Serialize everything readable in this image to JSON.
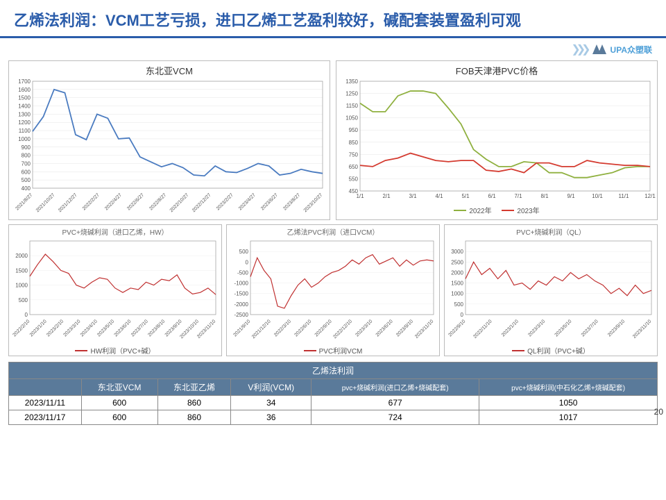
{
  "title": "乙烯法利润：VCM工艺亏损，进口乙烯工艺盈利较好，碱配套装置盈利可观",
  "logo_text": "UPA众塑联",
  "page_number": "20",
  "chart1": {
    "title": "东北亚VCM",
    "color": "#4a7bc0",
    "ylim": [
      400,
      1700
    ],
    "ytick_step": 100,
    "grid_color": "#e5e5e5",
    "x_labels": [
      "2021/8/27",
      "2021/10/27",
      "2021/12/27",
      "2022/2/27",
      "2022/4/27",
      "2022/6/27",
      "2022/8/27",
      "2022/10/27",
      "2022/12/27",
      "2023/2/27",
      "2023/4/27",
      "2023/6/27",
      "2023/8/27",
      "2023/10/27"
    ],
    "series": [
      1090,
      1270,
      1600,
      1560,
      1050,
      990,
      1300,
      1250,
      1000,
      1010,
      780,
      720,
      660,
      700,
      650,
      560,
      550,
      670,
      600,
      590,
      640,
      700,
      670,
      560,
      580,
      630,
      600,
      580
    ]
  },
  "chart2": {
    "title": "FOB天津港PVC价格",
    "ylim": [
      450,
      1350
    ],
    "ytick_step": 100,
    "grid_color": "#e5e5e5",
    "x_labels": [
      "1/1",
      "2/1",
      "3/1",
      "4/1",
      "5/1",
      "6/1",
      "7/1",
      "8/1",
      "9/1",
      "10/1",
      "11/1",
      "12/1"
    ],
    "legend": [
      {
        "label": "2022年",
        "color": "#8fb03f"
      },
      {
        "label": "2023年",
        "color": "#d43a2f"
      }
    ],
    "series_2022": [
      1170,
      1100,
      1100,
      1230,
      1270,
      1270,
      1250,
      1130,
      1000,
      790,
      710,
      650,
      650,
      690,
      680,
      600,
      600,
      560,
      560,
      580,
      600,
      640,
      650,
      650
    ],
    "series_2023": [
      660,
      650,
      700,
      720,
      760,
      730,
      700,
      690,
      700,
      700,
      620,
      610,
      630,
      600,
      680,
      680,
      650,
      650,
      700,
      680,
      670,
      660,
      660,
      650
    ]
  },
  "chart3": {
    "title": "PVC+烧碱利润（进口乙烯，HW）",
    "legend_label": "HW利润（PVC+碱）",
    "color": "#c03030",
    "ylim": [
      0,
      2500
    ],
    "yticks": [
      0,
      500,
      1000,
      1500,
      2000
    ],
    "x_labels": [
      "2022/2/10",
      "2023/1/10",
      "2023/2/10",
      "2023/3/10",
      "2023/4/10",
      "2023/5/10",
      "2023/6/10",
      "2023/7/10",
      "2023/8/10",
      "2023/9/10",
      "2023/10/10",
      "2023/11/10"
    ],
    "series": [
      1300,
      1700,
      2050,
      1800,
      1500,
      1400,
      1000,
      900,
      1100,
      1250,
      1200,
      900,
      750,
      900,
      850,
      1100,
      1000,
      1200,
      1150,
      1350,
      900,
      700,
      750,
      900,
      680
    ]
  },
  "chart4": {
    "title": "乙烯法PVC利润（进口VCM）",
    "legend_label": "PVC利润VCM",
    "color": "#c03030",
    "ylim": [
      -2500,
      1000
    ],
    "yticks": [
      -2500,
      -2000,
      -1500,
      -1000,
      -500,
      0,
      500
    ],
    "x_labels": [
      "2021/9/10",
      "2021/12/10",
      "2022/3/10",
      "2022/6/10",
      "2022/9/10",
      "2022/12/10",
      "2023/3/10",
      "2023/6/10",
      "2023/9/10",
      "2023/11/10"
    ],
    "series": [
      -700,
      200,
      -400,
      -800,
      -2100,
      -2200,
      -1600,
      -1100,
      -800,
      -1200,
      -1000,
      -700,
      -500,
      -400,
      -200,
      100,
      -100,
      200,
      350,
      -100,
      50,
      200,
      -200,
      100,
      -150,
      50,
      100,
      50
    ]
  },
  "chart5": {
    "title": "PVC+烧碱利润（QL）",
    "legend_label": "QL利润（PVC+碱）",
    "color": "#c03030",
    "ylim": [
      0,
      3500
    ],
    "yticks": [
      0,
      500,
      1000,
      1500,
      2000,
      2500,
      3000
    ],
    "x_labels": [
      "2022/9/10",
      "2022/11/10",
      "2023/1/10",
      "2023/3/10",
      "2023/5/10",
      "2023/7/10",
      "2023/9/10",
      "2023/11/10"
    ],
    "series": [
      1700,
      2500,
      1900,
      2200,
      1700,
      2100,
      1400,
      1500,
      1200,
      1600,
      1400,
      1800,
      1600,
      2000,
      1700,
      1900,
      1600,
      1400,
      1000,
      1250,
      900,
      1400,
      1000,
      1150
    ]
  },
  "table": {
    "header_main": "乙烯法利润",
    "columns": [
      "",
      "东北亚VCM",
      "东北亚乙烯",
      "V利润(VCM)",
      "pvc+烧碱利润(进口乙烯+烧碱配套)",
      "pvc+烧碱利润(中石化乙烯+烧碱配套)"
    ],
    "rows": [
      [
        "2023/11/11",
        "600",
        "860",
        "34",
        "677",
        "1050"
      ],
      [
        "2023/11/17",
        "600",
        "860",
        "36",
        "724",
        "1017"
      ]
    ]
  }
}
